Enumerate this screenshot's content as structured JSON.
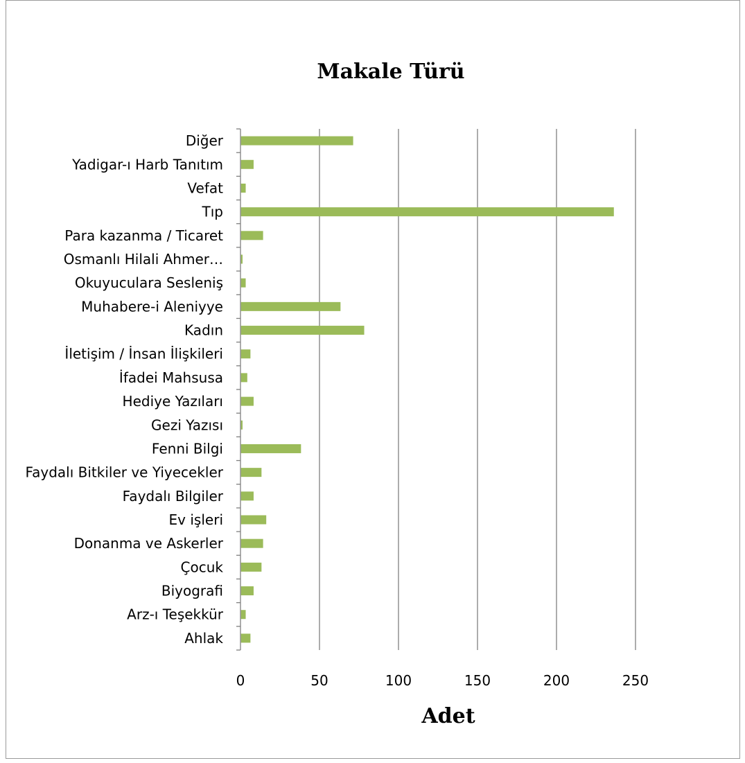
{
  "chart_data": {
    "type": "bar",
    "orientation": "horizontal",
    "title": "Makale Türü",
    "xlabel": "Adet",
    "ylabel": "",
    "xlim": [
      0,
      250
    ],
    "x_ticks": [
      "0",
      "50",
      "100",
      "150",
      "200",
      "250"
    ],
    "grid": "vertical",
    "bar_color": "#9bbb59",
    "categories": [
      "Diğer",
      "Yadigar-ı Harb Tanıtım",
      "Vefat",
      "Tıp",
      "Para kazanma / Ticaret",
      "Osmanlı Hilali Ahmer…",
      "Okuyuculara Sesleniş",
      "Muhabere-i Aleniyye",
      "Kadın",
      "İletişim / İnsan İlişkileri",
      "İfadei Mahsusa",
      "Hediye Yazıları",
      "Gezi Yazısı",
      "Fenni Bilgi",
      "Faydalı Bitkiler ve Yiyecekler",
      "Faydalı Bilgiler",
      "Ev işleri",
      "Donanma ve Askerler",
      "Çocuk",
      "Biyografi",
      "Arz-ı Teşekkür",
      "Ahlak"
    ],
    "values": [
      71,
      8,
      3,
      236,
      14,
      1,
      3,
      63,
      78,
      6,
      4,
      8,
      1,
      38,
      13,
      8,
      16,
      14,
      13,
      8,
      3,
      6
    ]
  }
}
